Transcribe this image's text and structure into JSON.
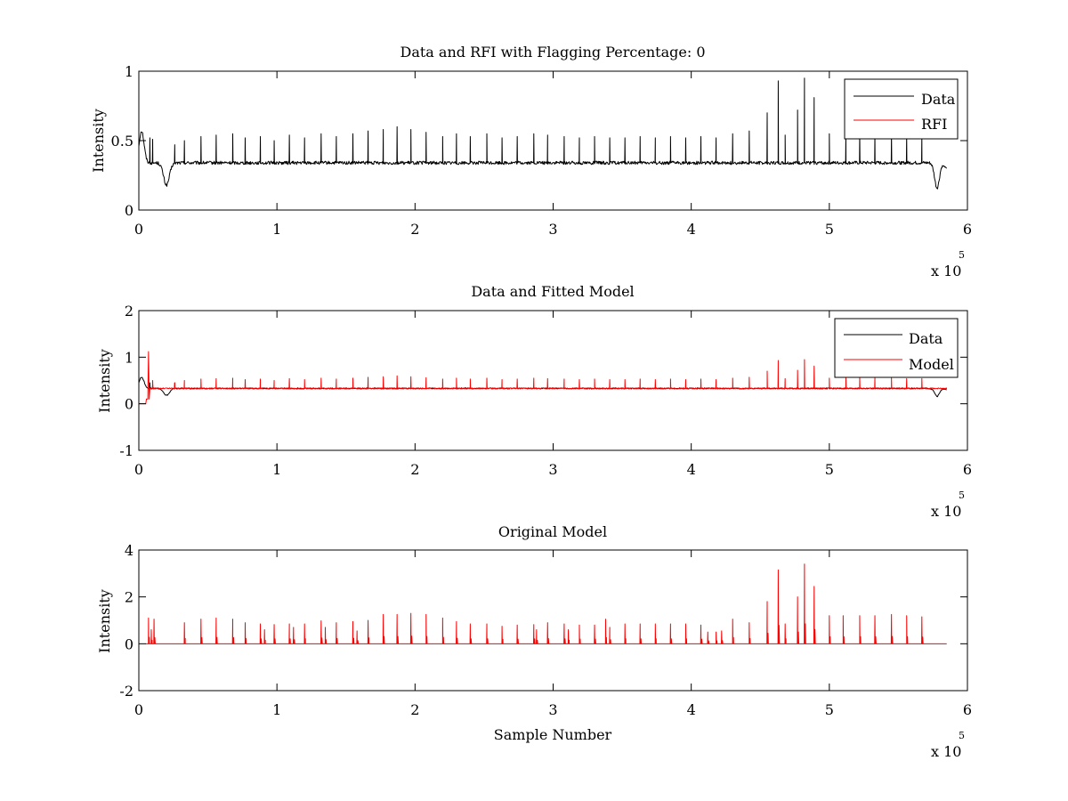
{
  "figure": {
    "background": "#ffffff",
    "exponent_label": {
      "base": "x 10",
      "power": "5"
    }
  },
  "colors": {
    "data": "#000000",
    "rfi": "#ff0000",
    "model": "#ff0000"
  },
  "chart_data": [
    {
      "type": "line",
      "title": "Data and RFI with Flagging Percentage: 0",
      "xlabel": "",
      "ylabel": "Intensity",
      "xlim": [
        0,
        6
      ],
      "ylim": [
        0,
        1
      ],
      "x_multiplier": 100000,
      "xticks": [
        0,
        1,
        2,
        3,
        4,
        5,
        6
      ],
      "yticks": [
        0,
        0.5,
        1
      ],
      "ytick_labels": [
        "0",
        "0.5",
        "1"
      ],
      "grid": false,
      "legend_position": "top-right",
      "legend": [
        "Data",
        "RFI"
      ],
      "series": [
        {
          "name": "Data",
          "color": "#000000",
          "baseline": 0.34,
          "x_end": 5.85,
          "dips": [
            {
              "x": 0.2,
              "y": 0.18,
              "width": 0.06
            },
            {
              "x": 5.78,
              "y": 0.16,
              "width": 0.05
            }
          ],
          "start_peak": {
            "x": 0.02,
            "y": 0.57
          },
          "end_point": {
            "x": 5.85,
            "y": 0.3
          },
          "spikes_x": [
            0.08,
            0.1,
            0.26,
            0.33,
            0.45,
            0.56,
            0.68,
            0.77,
            0.88,
            0.98,
            1.09,
            1.2,
            1.32,
            1.43,
            1.55,
            1.66,
            1.77,
            1.87,
            1.97,
            2.08,
            2.2,
            2.3,
            2.4,
            2.52,
            2.63,
            2.74,
            2.86,
            2.96,
            3.08,
            3.19,
            3.3,
            3.41,
            3.52,
            3.63,
            3.74,
            3.85,
            3.96,
            4.07,
            4.18,
            4.3,
            4.42,
            4.55,
            4.63,
            4.68,
            4.77,
            4.82,
            4.89,
            5.0,
            5.12,
            5.22,
            5.33,
            5.45,
            5.56,
            5.67
          ],
          "spikes_y": [
            0.52,
            0.51,
            0.47,
            0.5,
            0.53,
            0.54,
            0.55,
            0.52,
            0.53,
            0.5,
            0.54,
            0.52,
            0.55,
            0.53,
            0.55,
            0.57,
            0.58,
            0.6,
            0.58,
            0.56,
            0.53,
            0.55,
            0.53,
            0.55,
            0.52,
            0.53,
            0.55,
            0.54,
            0.53,
            0.52,
            0.53,
            0.52,
            0.52,
            0.53,
            0.52,
            0.53,
            0.52,
            0.53,
            0.52,
            0.55,
            0.57,
            0.7,
            0.93,
            0.54,
            0.72,
            0.95,
            0.81,
            0.55,
            0.56,
            0.56,
            0.55,
            0.55,
            0.54,
            0.54
          ]
        },
        {
          "name": "RFI",
          "color": "#ff0000",
          "values": []
        }
      ]
    },
    {
      "type": "line",
      "title": "Data and Fitted Model",
      "xlabel": "",
      "ylabel": "Intensity",
      "xlim": [
        0,
        6
      ],
      "ylim": [
        -1,
        2
      ],
      "x_multiplier": 100000,
      "xticks": [
        0,
        1,
        2,
        3,
        4,
        5,
        6
      ],
      "yticks": [
        -1,
        0,
        1,
        2
      ],
      "ytick_labels": [
        "-1",
        "0",
        "1",
        "2"
      ],
      "grid": false,
      "legend_position": "top-right",
      "legend": [
        "Data",
        "Model"
      ],
      "series": [
        {
          "name": "Data",
          "color": "#000000",
          "baseline": 0.33,
          "x_end": 5.85,
          "dips": [
            {
              "x": 0.2,
              "y": 0.18,
              "width": 0.06
            },
            {
              "x": 5.78,
              "y": 0.16,
              "width": 0.05
            }
          ],
          "start_peak": {
            "x": 0.02,
            "y": 0.57
          },
          "end_point": {
            "x": 5.85,
            "y": 0.3
          },
          "spikes_x": [
            0.08,
            0.1,
            0.26
          ],
          "spikes_y": [
            0.45,
            0.42,
            0.45
          ]
        },
        {
          "name": "Model",
          "color": "#ff0000",
          "baseline": 0.33,
          "x_end": 5.85,
          "start_segment": [
            {
              "x": 0.0,
              "y": 0.0
            },
            {
              "x": 0.05,
              "y": 0.0
            },
            {
              "x": 0.055,
              "y": 0.1
            },
            {
              "x": 0.065,
              "y": 0.1
            },
            {
              "x": 0.07,
              "y": 1.12
            },
            {
              "x": 0.075,
              "y": 0.1
            },
            {
              "x": 0.08,
              "y": 0.33
            }
          ],
          "spikes_x": [
            0.1,
            0.26,
            0.33,
            0.45,
            0.56,
            0.68,
            0.77,
            0.88,
            0.98,
            1.09,
            1.2,
            1.32,
            1.43,
            1.55,
            1.66,
            1.77,
            1.87,
            1.97,
            2.08,
            2.2,
            2.3,
            2.4,
            2.52,
            2.63,
            2.74,
            2.86,
            2.96,
            3.08,
            3.19,
            3.3,
            3.41,
            3.52,
            3.63,
            3.74,
            3.85,
            3.96,
            4.07,
            4.18,
            4.3,
            4.42,
            4.55,
            4.63,
            4.68,
            4.77,
            4.82,
            4.89,
            5.0,
            5.12,
            5.22,
            5.33,
            5.45,
            5.56,
            5.67
          ],
          "spikes_y": [
            0.5,
            0.45,
            0.5,
            0.53,
            0.54,
            0.55,
            0.52,
            0.53,
            0.5,
            0.54,
            0.52,
            0.55,
            0.53,
            0.55,
            0.57,
            0.58,
            0.6,
            0.58,
            0.56,
            0.53,
            0.55,
            0.53,
            0.55,
            0.52,
            0.53,
            0.55,
            0.54,
            0.53,
            0.52,
            0.53,
            0.52,
            0.52,
            0.53,
            0.52,
            0.53,
            0.52,
            0.53,
            0.52,
            0.55,
            0.57,
            0.7,
            0.93,
            0.54,
            0.72,
            0.95,
            0.81,
            0.55,
            0.56,
            0.56,
            0.55,
            0.55,
            0.54,
            0.54
          ]
        }
      ]
    },
    {
      "type": "line",
      "title": "Original Model",
      "xlabel": "Sample Number",
      "ylabel": "Intensity",
      "xlim": [
        0,
        6
      ],
      "ylim": [
        -2,
        4
      ],
      "x_multiplier": 100000,
      "xticks": [
        0,
        1,
        2,
        3,
        4,
        5,
        6
      ],
      "yticks": [
        -2,
        0,
        2,
        4
      ],
      "ytick_labels": [
        "-2",
        "0",
        "2",
        "4"
      ],
      "grid": false,
      "legend_position": "none",
      "legend": [],
      "series": [
        {
          "name": "",
          "color": "#ff0000",
          "baseline": 0.0,
          "x_start": 0.05,
          "x_end": 5.85,
          "spikes_x": [
            0.07,
            0.09,
            0.11,
            0.33,
            0.45,
            0.56,
            0.68,
            0.77,
            0.88,
            0.91,
            0.98,
            1.09,
            1.12,
            1.2,
            1.32,
            1.35,
            1.43,
            1.55,
            1.58,
            1.66,
            1.77,
            1.87,
            1.97,
            2.08,
            2.2,
            2.3,
            2.4,
            2.52,
            2.63,
            2.74,
            2.86,
            2.88,
            2.96,
            3.08,
            3.11,
            3.19,
            3.3,
            3.38,
            3.41,
            3.52,
            3.63,
            3.74,
            3.85,
            3.96,
            4.07,
            4.12,
            4.18,
            4.22,
            4.3,
            4.42,
            4.55,
            4.63,
            4.68,
            4.77,
            4.82,
            4.89,
            5.0,
            5.1,
            5.22,
            5.33,
            5.45,
            5.56,
            5.67
          ],
          "spikes_y": [
            1.1,
            0.6,
            1.05,
            0.9,
            1.05,
            1.1,
            1.05,
            0.9,
            0.85,
            0.6,
            0.82,
            0.85,
            0.7,
            0.85,
            0.98,
            0.7,
            0.9,
            0.95,
            0.55,
            1.0,
            1.25,
            1.25,
            1.3,
            1.25,
            1.1,
            0.95,
            0.85,
            0.85,
            0.75,
            0.8,
            0.82,
            0.6,
            0.9,
            0.85,
            0.6,
            0.8,
            0.8,
            1.05,
            0.7,
            0.85,
            0.85,
            0.85,
            0.85,
            0.85,
            0.8,
            0.5,
            0.5,
            0.55,
            1.05,
            0.9,
            1.8,
            3.15,
            0.85,
            2.0,
            3.4,
            2.45,
            1.2,
            1.2,
            1.2,
            1.2,
            1.25,
            1.2,
            1.15
          ]
        }
      ]
    }
  ]
}
